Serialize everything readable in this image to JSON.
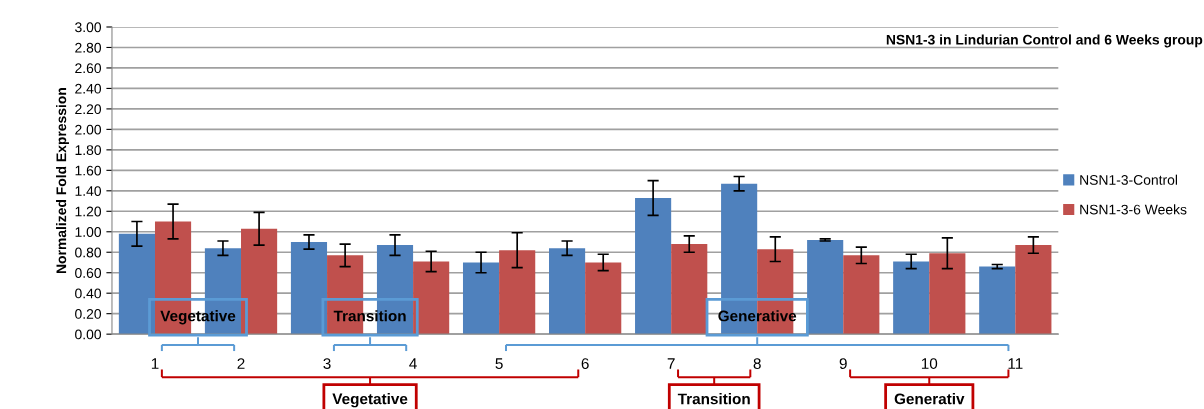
{
  "chart_data": {
    "type": "bar",
    "title": "NSN1-3 in Lindurian Control and 6 Weeks group",
    "ylabel": "Normalized Fold Expression",
    "categories": [
      "1",
      "2",
      "3",
      "4",
      "5",
      "6",
      "7",
      "8",
      "9",
      "10",
      "11"
    ],
    "series": [
      {
        "name": "NSN1-3-Control",
        "color": "#4f81bd",
        "values": [
          0.98,
          0.84,
          0.9,
          0.87,
          0.7,
          0.84,
          1.33,
          1.47,
          0.92,
          0.71,
          0.66
        ],
        "errors": [
          0.12,
          0.07,
          0.07,
          0.1,
          0.1,
          0.07,
          0.17,
          0.07,
          0.01,
          0.07,
          0.02
        ]
      },
      {
        "name": "NSN1-3-6 Weeks",
        "color": "#c0504d",
        "values": [
          1.1,
          1.03,
          0.77,
          0.71,
          0.82,
          0.7,
          0.88,
          0.83,
          0.77,
          0.79,
          0.87
        ],
        "errors": [
          0.17,
          0.16,
          0.11,
          0.1,
          0.17,
          0.08,
          0.08,
          0.12,
          0.08,
          0.15,
          0.08
        ]
      }
    ],
    "ylim": [
      0,
      3
    ],
    "yticks": [
      {
        "value": 0,
        "label": "0.00"
      },
      {
        "value": 0.2,
        "label": "0.20"
      },
      {
        "value": 0.4,
        "label": "0.40"
      },
      {
        "value": 0.6,
        "label": "0.60"
      },
      {
        "value": 0.8,
        "label": "0.80"
      },
      {
        "value": 1.0,
        "label": "1.00"
      },
      {
        "value": 1.2,
        "label": "1.20"
      },
      {
        "value": 1.4,
        "label": "1.40"
      },
      {
        "value": 1.6,
        "label": "1.60"
      },
      {
        "value": 1.8,
        "label": "1.80"
      },
      {
        "value": 2.0,
        "label": "2.00"
      },
      {
        "value": 2.2,
        "label": "2.20"
      },
      {
        "value": 2.4,
        "label": "2.40"
      },
      {
        "value": 2.6,
        "label": "2.60"
      },
      {
        "value": 2.8,
        "label": "2.80"
      },
      {
        "value": 3.0,
        "label": "3.00"
      }
    ],
    "grid": "y",
    "legend": "right",
    "annotations": [
      "Vegetative",
      "Transition",
      "Generative",
      "Vegetative",
      "Transition",
      "Generativ"
    ]
  }
}
